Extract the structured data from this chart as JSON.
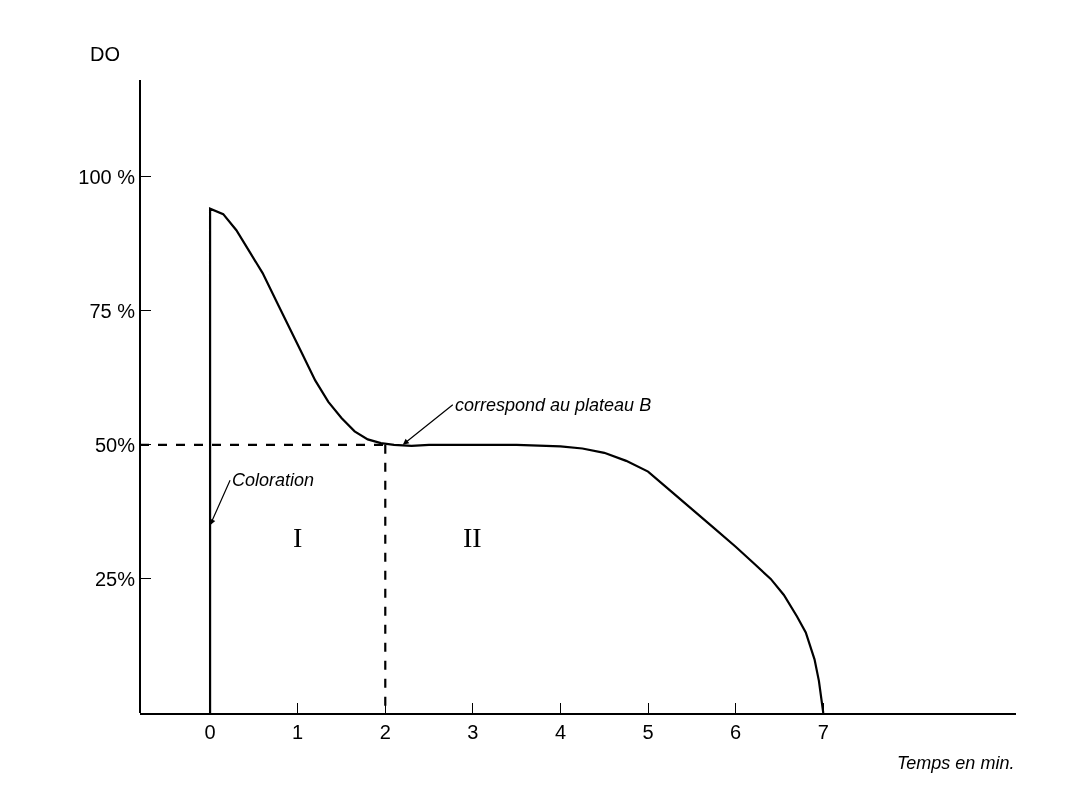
{
  "chart_data": {
    "type": "line",
    "xlabel": "Temps en min.",
    "ylabel": "DO",
    "xlim": [
      -0.8,
      9.2
    ],
    "xticks": [
      0,
      1,
      2,
      3,
      4,
      5,
      6,
      7
    ],
    "ylim": [
      0,
      118
    ],
    "yticks": [
      {
        "value": 25,
        "label": "25%"
      },
      {
        "value": 50,
        "label": "50%"
      },
      {
        "value": 75,
        "label": "75 %"
      },
      {
        "value": 100,
        "label": "100 %"
      }
    ],
    "series": [
      {
        "color": "#000000",
        "line_style": "solid",
        "x": [
          0,
          0,
          0.15,
          0.3,
          0.45,
          0.6,
          0.75,
          0.9,
          1.05,
          1.2,
          1.35,
          1.5,
          1.65,
          1.8,
          1.95,
          2.1,
          2.3,
          2.5,
          3,
          3.5,
          4,
          4.25,
          4.5,
          4.75,
          5,
          5.25,
          5.5,
          5.75,
          6,
          6.2,
          6.4,
          6.55,
          6.7,
          6.8,
          6.9,
          6.95,
          7
        ],
        "values": [
          0,
          94,
          93,
          90,
          86,
          82,
          77,
          72,
          67,
          62,
          58,
          55,
          52.5,
          51,
          50.3,
          50,
          49.8,
          50,
          50,
          50,
          49.7,
          49.3,
          48.5,
          47,
          45,
          41.5,
          38,
          34.5,
          31,
          28,
          25,
          22,
          18,
          15,
          10,
          6,
          0
        ]
      },
      {
        "color": "#000000",
        "line_style": "dashed",
        "x": [
          -0.8,
          2
        ],
        "values": [
          50,
          50
        ]
      },
      {
        "color": "#000000",
        "line_style": "dashed",
        "x": [
          2,
          2
        ],
        "values": [
          50,
          0
        ]
      }
    ],
    "annotations": [
      {
        "text": "correspond au plateau B",
        "x": 2.2,
        "y": 50
      },
      {
        "text": "Coloration",
        "x": 0,
        "y": 35
      },
      "I",
      "II"
    ]
  }
}
